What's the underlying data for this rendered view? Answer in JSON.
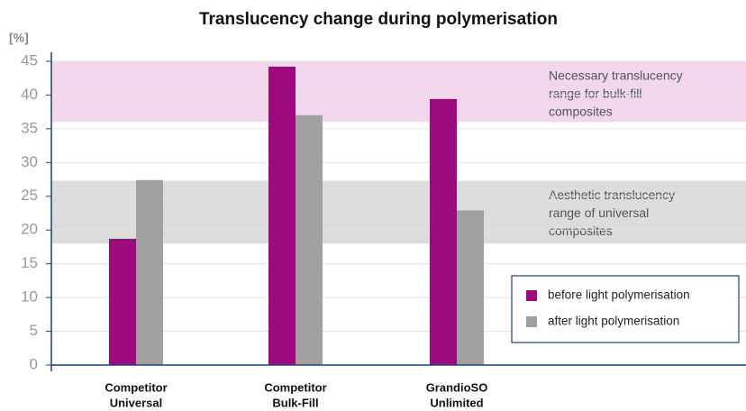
{
  "chart_data": {
    "type": "bar",
    "title": "Translucency change during polymerisation",
    "y_label": "[%]",
    "categories": [
      [
        "Competitor",
        "Universal"
      ],
      [
        "Competitor",
        "Bulk-Fill"
      ],
      [
        "GrandioSO",
        "Unlimited"
      ]
    ],
    "series": [
      {
        "name": "before light polymerisation",
        "color": "#9c0a7d",
        "values": [
          18.7,
          44.2,
          39.4
        ]
      },
      {
        "name": "after light polymerisation",
        "color": "#a0a0a0",
        "values": [
          27.4,
          37.0,
          22.9
        ]
      }
    ],
    "bands": [
      {
        "range": [
          36,
          45
        ],
        "color": "#f1d6ec",
        "label": [
          "Necessary translucency",
          "range for bulk-fill",
          "composites"
        ]
      },
      {
        "range": [
          18,
          27.3
        ],
        "color": "#dcdcdc",
        "label": [
          "Aesthetic translucency",
          "range of universal",
          "composites"
        ]
      }
    ],
    "ylim": [
      0,
      46
    ],
    "yticks": [
      0,
      5,
      10,
      15,
      20,
      25,
      30,
      35,
      40,
      45
    ],
    "grid": true
  }
}
